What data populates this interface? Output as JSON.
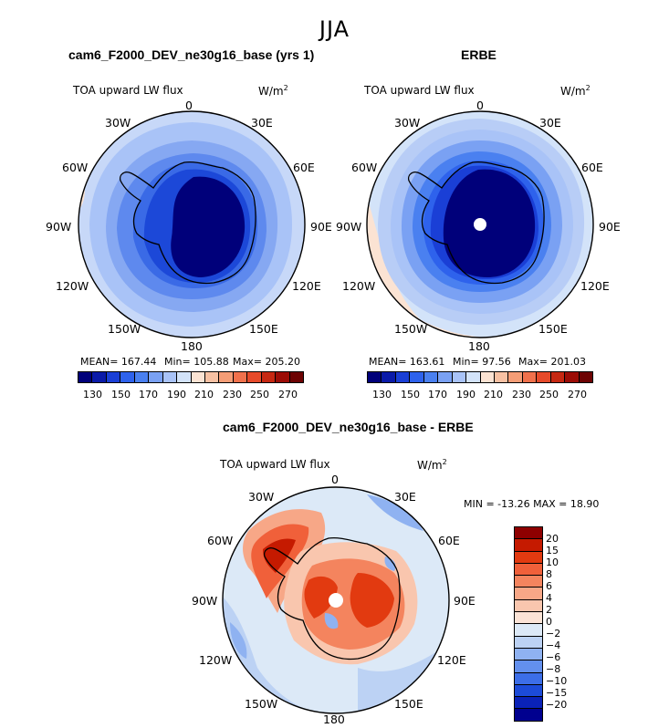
{
  "figure": {
    "season": "JJA"
  },
  "panels": [
    {
      "title": "cam6_F2000_DEV_ne30g16_base (yrs 1)",
      "variable": "TOA upward LW flux",
      "units_base": "W/m",
      "units_sup": "2",
      "stats": {
        "mean": "MEAN= 167.44",
        "min": "Min= 105.88",
        "max": "Max= 205.20"
      }
    },
    {
      "title": "ERBE",
      "variable": "TOA upward LW flux",
      "units_base": "W/m",
      "units_sup": "2",
      "stats": {
        "mean": "MEAN= 163.61",
        "min": "Min= 97.56",
        "max": "Max= 201.03"
      }
    },
    {
      "title": "cam6_F2000_DEV_ne30g16_base - ERBE",
      "variable": "TOA upward LW flux",
      "units_base": "W/m",
      "units_sup": "2",
      "stats": {
        "minmax": "MIN = -13.26 MAX =  18.90"
      }
    }
  ],
  "longitude_labels": [
    "0",
    "30E",
    "60E",
    "90E",
    "120E",
    "150E",
    "180",
    "150W",
    "120W",
    "90W",
    "60W",
    "30W"
  ],
  "chart_data": [
    {
      "type": "heatmap",
      "projection": "south-polar-stereographic",
      "title": "cam6_F2000_DEV_ne30g16_base (yrs 1)",
      "variable": "TOA upward LW flux",
      "units": "W/m2",
      "mean": 167.44,
      "min": 105.88,
      "max": 205.2,
      "colorbar": {
        "ticks": [
          "130",
          "150",
          "170",
          "190",
          "210",
          "230",
          "250",
          "270"
        ],
        "colors": [
          "#00007a",
          "#0a1aa8",
          "#1a3fd6",
          "#2e62ec",
          "#4a80f0",
          "#7aa1f3",
          "#a9c3f7",
          "#d3e3f9",
          "#fbe3d3",
          "#f7c1a3",
          "#f49d76",
          "#f0714c",
          "#e64a2a",
          "#c62812",
          "#9c0c06",
          "#6d0303"
        ]
      },
      "color_regions_ring": [
        "#b8cdf6",
        "#a7c1f5",
        "#86a8f2",
        "#5e89ee",
        "#3a6ae6",
        "#1c48d8"
      ],
      "ice_color": "#00007a"
    },
    {
      "type": "heatmap",
      "projection": "south-polar-stereographic",
      "title": "ERBE",
      "variable": "TOA upward LW flux",
      "units": "W/m2",
      "mean": 163.61,
      "min": 97.56,
      "max": 201.03,
      "colorbar": {
        "ticks": [
          "130",
          "150",
          "170",
          "190",
          "210",
          "230",
          "250",
          "270"
        ],
        "colors": [
          "#00007a",
          "#0a1aa8",
          "#1a3fd6",
          "#2e62ec",
          "#4a80f0",
          "#7aa1f3",
          "#a9c3f7",
          "#d3e3f9",
          "#fbe3d3",
          "#f7c1a3",
          "#f49d76",
          "#f0714c",
          "#e64a2a",
          "#c62812",
          "#9c0c06",
          "#6d0303"
        ]
      },
      "ice_color": "#00007a"
    },
    {
      "type": "heatmap",
      "projection": "south-polar-stereographic",
      "title": "cam6_F2000_DEV_ne30g16_base - ERBE",
      "variable": "TOA upward LW flux",
      "units": "W/m2",
      "min": -13.26,
      "max": 18.9,
      "colorbar": {
        "ticks": [
          "20",
          "15",
          "10",
          "8",
          "6",
          "4",
          "2",
          "0",
          "−2",
          "−4",
          "−6",
          "−8",
          "−10",
          "−15",
          "−20"
        ],
        "colors": [
          "#8e0000",
          "#c51a00",
          "#e23a10",
          "#f0603a",
          "#f4845e",
          "#f7a787",
          "#f9c6ae",
          "#fbe3d6",
          "#dce9f7",
          "#bcd2f4",
          "#8fb2f1",
          "#6390ee",
          "#3c6ee8",
          "#1c4bd9",
          "#0a22b8",
          "#00008f"
        ]
      }
    }
  ]
}
